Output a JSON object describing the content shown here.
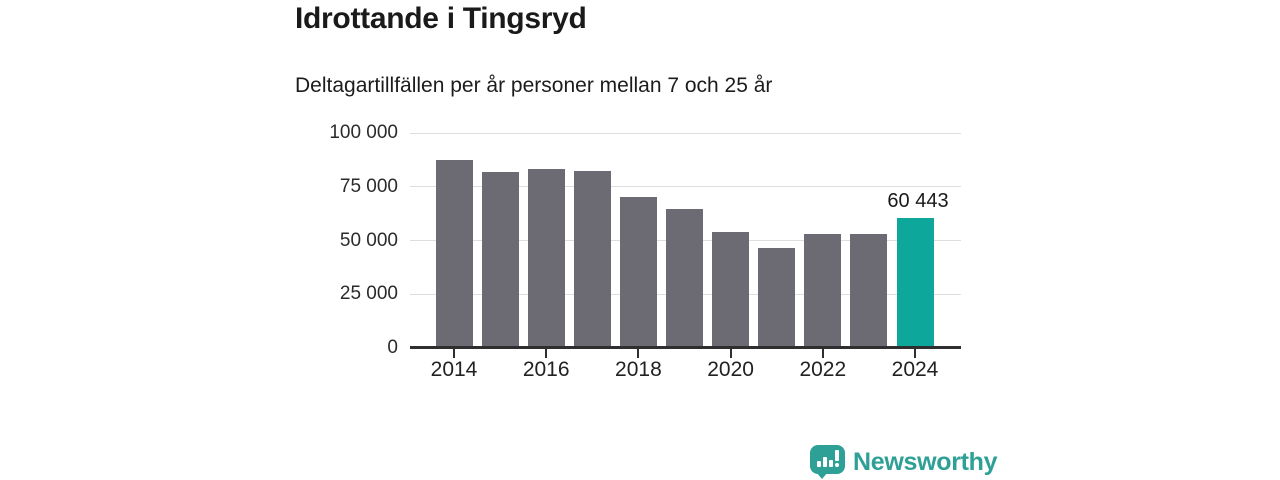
{
  "header": {
    "title": "Idrottande i Tingsryd",
    "subtitle": "Deltagartillfällen per år personer mellan 7 och 25 år"
  },
  "chart_data": {
    "type": "bar",
    "title": "Idrottande i Tingsryd",
    "subtitle": "Deltagartillfällen per år personer mellan 7 och 25 år",
    "categories": [
      "2014",
      "2015",
      "2016",
      "2017",
      "2018",
      "2019",
      "2020",
      "2021",
      "2022",
      "2023",
      "2024"
    ],
    "values": [
      87500,
      82000,
      83300,
      82300,
      70200,
      64800,
      53900,
      46500,
      52800,
      53200,
      60443
    ],
    "highlight": {
      "category": "2024",
      "value": 60443,
      "label": "60 443"
    },
    "ylim": [
      0,
      100000
    ],
    "yticks": [
      {
        "value": 0,
        "label": "0"
      },
      {
        "value": 25000,
        "label": "25 000"
      },
      {
        "value": 50000,
        "label": "50 000"
      },
      {
        "value": 75000,
        "label": "75 000"
      },
      {
        "value": 100000,
        "label": "100 000"
      }
    ],
    "xticks": [
      "2014",
      "2016",
      "2018",
      "2020",
      "2022",
      "2024"
    ],
    "grid": "horizontal",
    "legend": "none",
    "bar_color": "#6c6a72",
    "highlight_color": "#0da89b",
    "axis_color": "#2f2f2f",
    "gridline_color": "#dedede"
  },
  "footer": {
    "brand": "Newsworthy",
    "brand_color": "#2ea096",
    "logo_icon": "speech-bubble-bar-chart-icon"
  }
}
